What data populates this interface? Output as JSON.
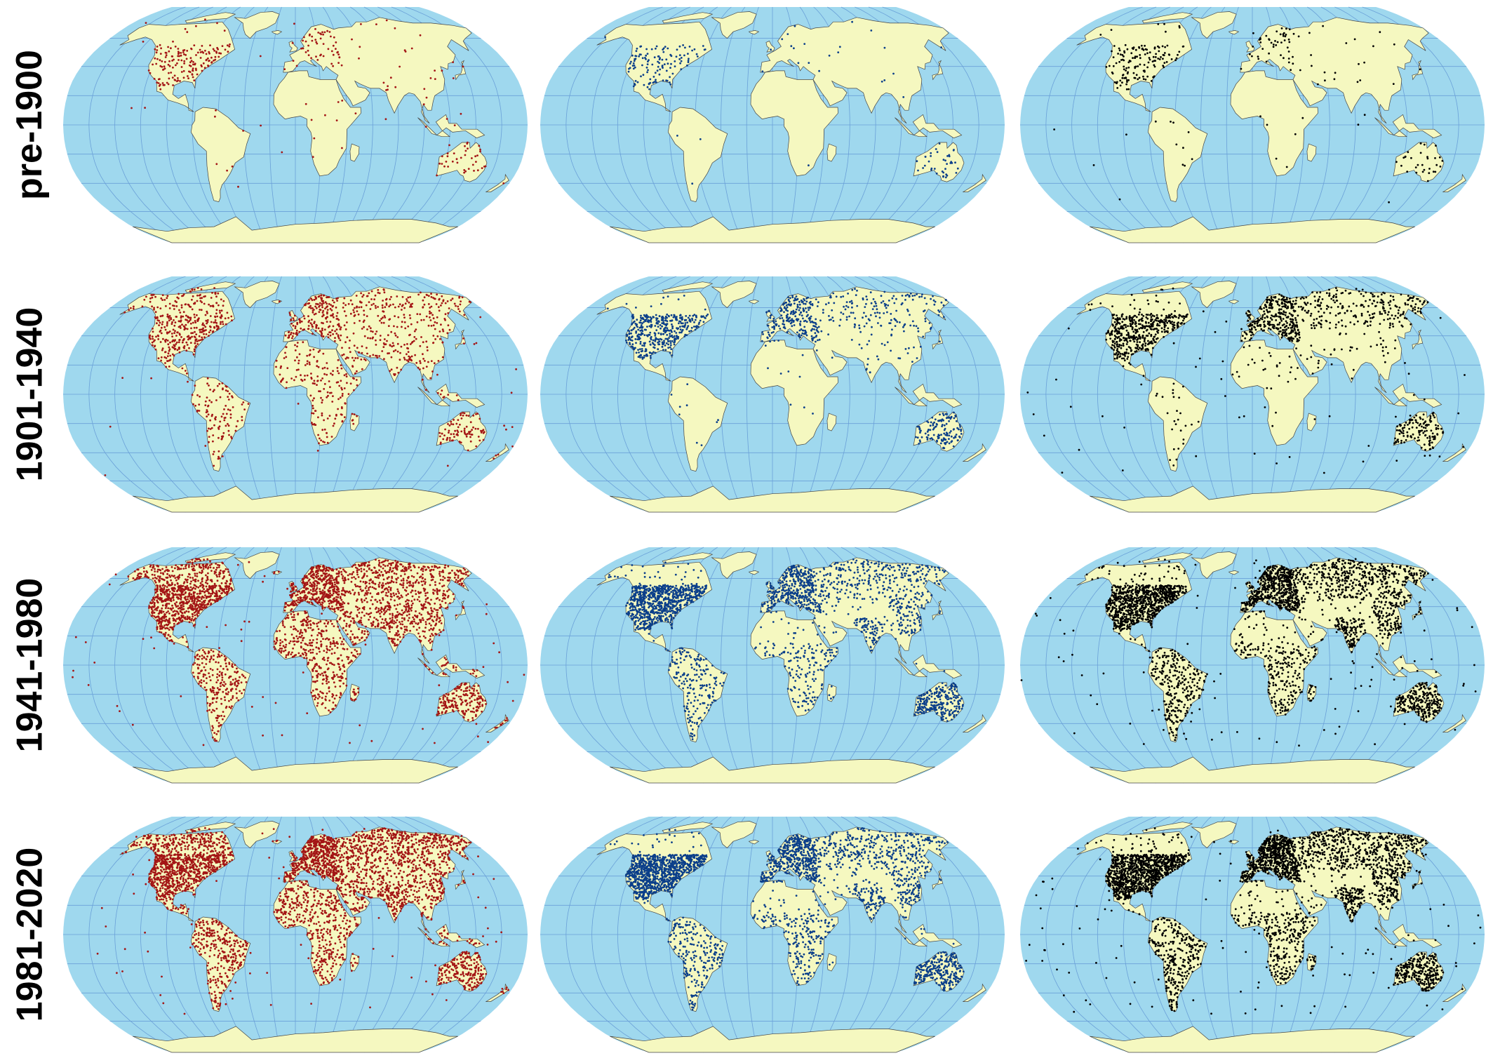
{
  "figure": {
    "rows": [
      {
        "label": "pre-1900",
        "density": 0.18
      },
      {
        "label": "1901-1940",
        "density": 0.35
      },
      {
        "label": "1941-1980",
        "density": 0.85
      },
      {
        "label": "1981-2020",
        "density": 1.0
      }
    ],
    "columns": [
      {
        "point_color": "#a31515"
      },
      {
        "point_color": "#0b3f8a"
      },
      {
        "point_color": "#000000"
      }
    ]
  },
  "colors": {
    "ocean": "#9fd8ee",
    "land": "#f5f8c0",
    "graticule": "#6aa0d8",
    "outline": "#444444"
  },
  "projection": "Robinson",
  "icons": [
    "world-map"
  ]
}
